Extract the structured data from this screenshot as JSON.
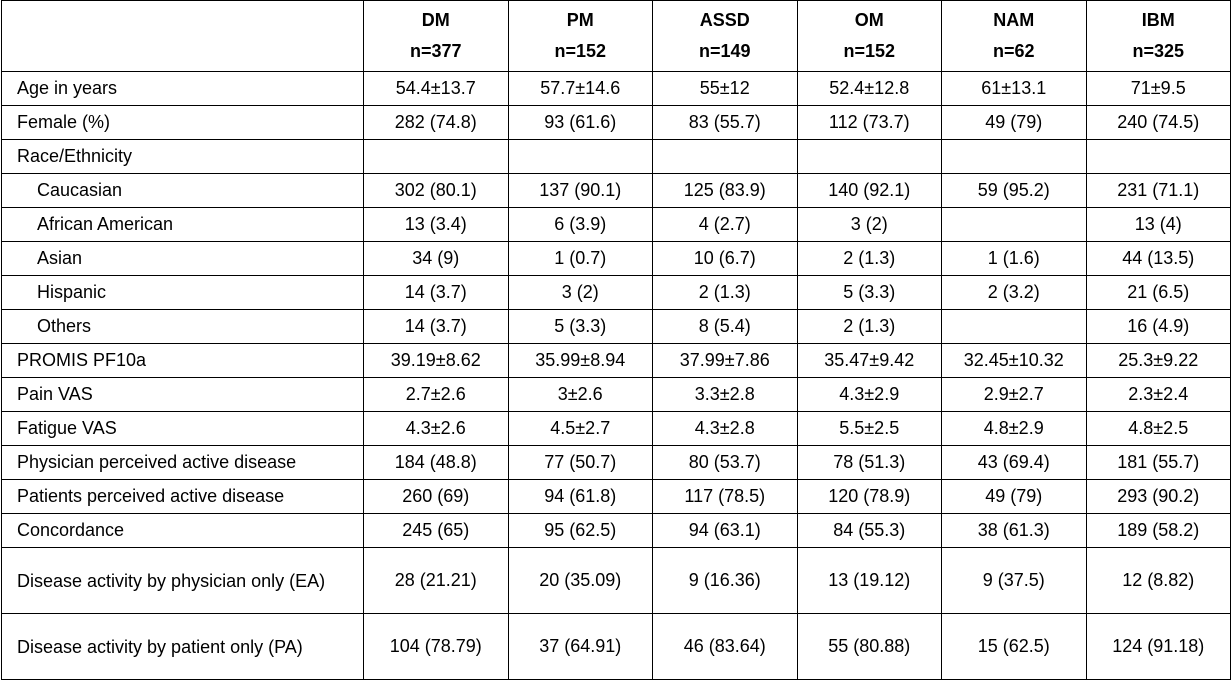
{
  "columns": [
    {
      "name": "DM",
      "n": "n=377"
    },
    {
      "name": "PM",
      "n": "n=152"
    },
    {
      "name": "ASSD",
      "n": "n=149"
    },
    {
      "name": "OM",
      "n": "n=152"
    },
    {
      "name": "NAM",
      "n": "n=62"
    },
    {
      "name": "IBM",
      "n": "n=325"
    }
  ],
  "rows": [
    {
      "label": "Age in years",
      "values": [
        "54.4±13.7",
        "57.7±14.6",
        "55±12",
        "52.4±12.8",
        "61±13.1",
        "71±9.5"
      ]
    },
    {
      "label": "Female (%)",
      "values": [
        "282 (74.8)",
        "93 (61.6)",
        "83 (55.7)",
        "112 (73.7)",
        "49 (79)",
        "240 (74.5)"
      ]
    },
    {
      "label": "Race/Ethnicity",
      "values": [
        "",
        "",
        "",
        "",
        "",
        ""
      ]
    },
    {
      "label": "Caucasian",
      "values": [
        "302 (80.1)",
        "137 (90.1)",
        "125 (83.9)",
        "140 (92.1)",
        "59 (95.2)",
        "231 (71.1)"
      ]
    },
    {
      "label": "African American",
      "values": [
        "13 (3.4)",
        "6 (3.9)",
        "4 (2.7)",
        "3 (2)",
        "",
        "13 (4)"
      ]
    },
    {
      "label": "Asian",
      "values": [
        "34 (9)",
        "1 (0.7)",
        "10 (6.7)",
        "2 (1.3)",
        "1 (1.6)",
        "44 (13.5)"
      ]
    },
    {
      "label": "Hispanic",
      "values": [
        "14 (3.7)",
        "3 (2)",
        "2 (1.3)",
        "5 (3.3)",
        "2 (3.2)",
        "21 (6.5)"
      ]
    },
    {
      "label": "Others",
      "values": [
        "14 (3.7)",
        "5 (3.3)",
        "8 (5.4)",
        "2 (1.3)",
        "",
        "16 (4.9)"
      ]
    },
    {
      "label": "PROMIS PF10a",
      "values": [
        "39.19±8.62",
        "35.99±8.94",
        "37.99±7.86",
        "35.47±9.42",
        "32.45±10.32",
        "25.3±9.22"
      ]
    },
    {
      "label": "Pain VAS",
      "values": [
        "2.7±2.6",
        "3±2.6",
        "3.3±2.8",
        "4.3±2.9",
        "2.9±2.7",
        "2.3±2.4"
      ]
    },
    {
      "label": "Fatigue VAS",
      "values": [
        "4.3±2.6",
        "4.5±2.7",
        "4.3±2.8",
        "5.5±2.5",
        "4.8±2.9",
        "4.8±2.5"
      ]
    },
    {
      "label": "Physician perceived active disease",
      "values": [
        "184 (48.8)",
        "77 (50.7)",
        "80 (53.7)",
        "78 (51.3)",
        "43 (69.4)",
        "181 (55.7)"
      ]
    },
    {
      "label": "Patients perceived active disease",
      "values": [
        "260 (69)",
        "94 (61.8)",
        "117 (78.5)",
        "120 (78.9)",
        "49 (79)",
        "293 (90.2)"
      ]
    },
    {
      "label": "Concordance",
      "values": [
        "245 (65)",
        "95 (62.5)",
        "94 (63.1)",
        "84 (55.3)",
        "38 (61.3)",
        "189 (58.2)"
      ]
    },
    {
      "label": "Disease activity by physician only (EA)",
      "values": [
        "28 (21.21)",
        "20 (35.09)",
        "9 (16.36)",
        "13 (19.12)",
        "9 (37.5)",
        "12 (8.82)"
      ]
    },
    {
      "label": "Disease activity by patient only (PA)",
      "values": [
        "104 (78.79)",
        "37 (64.91)",
        "46 (83.64)",
        "55 (80.88)",
        "15 (62.5)",
        "124 (91.18)"
      ]
    }
  ]
}
